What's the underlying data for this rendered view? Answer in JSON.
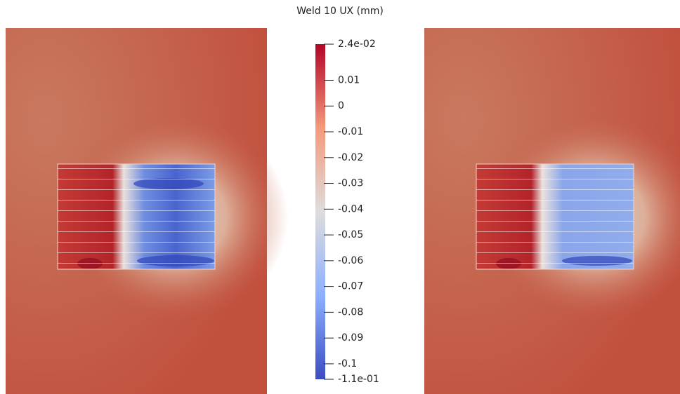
{
  "chart_data": {
    "type": "colorbar",
    "title": "Weld 10 UX (mm)",
    "ylim": [
      -0.106,
      0.024
    ],
    "yticks": [
      {
        "value": 0.024,
        "label": "2.4e-02"
      },
      0.01,
      0,
      -0.01,
      -0.02,
      -0.03,
      -0.04,
      -0.05,
      -0.06,
      -0.07,
      -0.08,
      -0.09,
      -0.1,
      {
        "value": -0.106,
        "label": "-1.1e-01"
      }
    ],
    "colormap": [
      "#3b4cc0",
      "#8db0fe",
      "#dddddd",
      "#f49a7b",
      "#b40426"
    ]
  }
}
